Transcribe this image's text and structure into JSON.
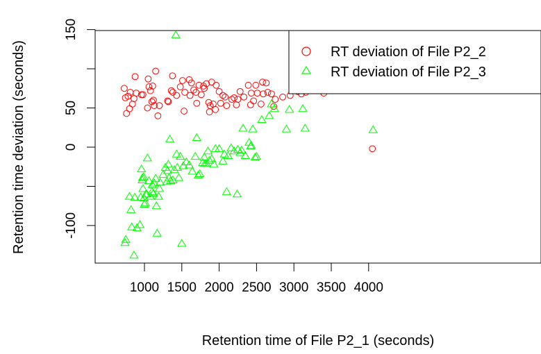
{
  "chart_data": {
    "type": "scatter",
    "xlabel": "Retention time of File P2_1 (seconds)",
    "ylabel": "Retention time deviation (seconds)",
    "xlim": [
      650,
      4100
    ],
    "ylim": [
      -145,
      150
    ],
    "x_ticks": [
      1000,
      1500,
      2000,
      2500,
      3000,
      3500,
      4000
    ],
    "y_ticks": [
      150,
      50,
      0,
      -100
    ],
    "y_ticks_unlabeled": [
      100,
      -50
    ],
    "grid": false,
    "legend_position": "top-right",
    "series": [
      {
        "name": "RT deviation of File P2_2",
        "marker": "circle",
        "color": "#ff0000",
        "points": [
          [
            730,
            75
          ],
          [
            745,
            63
          ],
          [
            760,
            43
          ],
          [
            780,
            65
          ],
          [
            800,
            49
          ],
          [
            810,
            70
          ],
          [
            840,
            55
          ],
          [
            860,
            62
          ],
          [
            875,
            90
          ],
          [
            890,
            69
          ],
          [
            960,
            67
          ],
          [
            980,
            67
          ],
          [
            1040,
            50
          ],
          [
            1050,
            87
          ],
          [
            1060,
            77
          ],
          [
            1080,
            72
          ],
          [
            1100,
            58
          ],
          [
            1110,
            78
          ],
          [
            1120,
            60
          ],
          [
            1130,
            53
          ],
          [
            1150,
            97
          ],
          [
            1180,
            40
          ],
          [
            1200,
            53
          ],
          [
            1310,
            59
          ],
          [
            1320,
            58
          ],
          [
            1360,
            72
          ],
          [
            1375,
            91
          ],
          [
            1380,
            70
          ],
          [
            1430,
            66
          ],
          [
            1480,
            77
          ],
          [
            1510,
            85
          ],
          [
            1530,
            46
          ],
          [
            1540,
            70
          ],
          [
            1600,
            86
          ],
          [
            1610,
            66
          ],
          [
            1630,
            82
          ],
          [
            1660,
            73
          ],
          [
            1690,
            70
          ],
          [
            1700,
            56
          ],
          [
            1730,
            79
          ],
          [
            1760,
            67
          ],
          [
            1790,
            78
          ],
          [
            1800,
            75
          ],
          [
            1830,
            81
          ],
          [
            1860,
            57
          ],
          [
            1870,
            45
          ],
          [
            1880,
            53
          ],
          [
            1900,
            83
          ],
          [
            1920,
            55
          ],
          [
            1950,
            48
          ],
          [
            1960,
            79
          ],
          [
            2000,
            71
          ],
          [
            2020,
            56
          ],
          [
            2050,
            66
          ],
          [
            2080,
            64
          ],
          [
            2100,
            53
          ],
          [
            2170,
            61
          ],
          [
            2200,
            63
          ],
          [
            2230,
            54
          ],
          [
            2250,
            61
          ],
          [
            2280,
            71
          ],
          [
            2330,
            64
          ],
          [
            2390,
            79
          ],
          [
            2420,
            54
          ],
          [
            2430,
            69
          ],
          [
            2460,
            59
          ],
          [
            2490,
            79
          ],
          [
            2510,
            69
          ],
          [
            2560,
            55
          ],
          [
            2580,
            83
          ],
          [
            2590,
            68
          ],
          [
            2630,
            82
          ],
          [
            2650,
            70
          ],
          [
            2700,
            68
          ],
          [
            2730,
            52
          ],
          [
            2750,
            61
          ],
          [
            2850,
            64
          ],
          [
            2950,
            66
          ],
          [
            3050,
            71
          ],
          [
            3100,
            68
          ],
          [
            3160,
            70
          ],
          [
            3260,
            81
          ],
          [
            3300,
            75
          ],
          [
            3400,
            69
          ],
          [
            4050,
            -2
          ]
        ]
      },
      {
        "name": "RT deviation of File P2_3",
        "marker": "triangle",
        "color": "#00ff00",
        "points": [
          [
            740,
            -122
          ],
          [
            750,
            -118
          ],
          [
            800,
            -63
          ],
          [
            820,
            -80
          ],
          [
            830,
            -102
          ],
          [
            860,
            -138
          ],
          [
            870,
            -64
          ],
          [
            900,
            -103
          ],
          [
            940,
            -99
          ],
          [
            950,
            -64
          ],
          [
            960,
            -28
          ],
          [
            970,
            -42
          ],
          [
            975,
            -39
          ],
          [
            980,
            -53
          ],
          [
            990,
            -38
          ],
          [
            995,
            -65
          ],
          [
            1000,
            -73
          ],
          [
            1010,
            -71
          ],
          [
            1020,
            -60
          ],
          [
            1030,
            -60
          ],
          [
            1040,
            -14
          ],
          [
            1060,
            -43
          ],
          [
            1080,
            -63
          ],
          [
            1100,
            -57
          ],
          [
            1105,
            -48
          ],
          [
            1120,
            -59
          ],
          [
            1130,
            -46
          ],
          [
            1150,
            -40
          ],
          [
            1160,
            -75
          ],
          [
            1170,
            -110
          ],
          [
            1190,
            -63
          ],
          [
            1200,
            -53
          ],
          [
            1210,
            -45
          ],
          [
            1250,
            -35
          ],
          [
            1280,
            -26
          ],
          [
            1300,
            -44
          ],
          [
            1310,
            -30
          ],
          [
            1320,
            -22
          ],
          [
            1330,
            -39
          ],
          [
            1340,
            10
          ],
          [
            1350,
            -43
          ],
          [
            1380,
            -42
          ],
          [
            1400,
            -29
          ],
          [
            1420,
            143
          ],
          [
            1430,
            -9
          ],
          [
            1440,
            -26
          ],
          [
            1460,
            -39
          ],
          [
            1480,
            -12
          ],
          [
            1500,
            -123
          ],
          [
            1520,
            -24
          ],
          [
            1560,
            -19
          ],
          [
            1600,
            -23
          ],
          [
            1640,
            -31
          ],
          [
            1680,
            -12
          ],
          [
            1700,
            12
          ],
          [
            1720,
            -36
          ],
          [
            1740,
            -34
          ],
          [
            1780,
            -20
          ],
          [
            1800,
            -13
          ],
          [
            1810,
            -21
          ],
          [
            1830,
            -21
          ],
          [
            1850,
            -5
          ],
          [
            1870,
            -17
          ],
          [
            1900,
            -15
          ],
          [
            1930,
            -22
          ],
          [
            1950,
            -2
          ],
          [
            2000,
            -2
          ],
          [
            2050,
            -18
          ],
          [
            2070,
            -9
          ],
          [
            2100,
            -57
          ],
          [
            2120,
            -11
          ],
          [
            2160,
            -1
          ],
          [
            2200,
            -5
          ],
          [
            2240,
            -60
          ],
          [
            2250,
            -3
          ],
          [
            2280,
            -7
          ],
          [
            2300,
            -4
          ],
          [
            2320,
            24
          ],
          [
            2350,
            -11
          ],
          [
            2400,
            6
          ],
          [
            2420,
            1
          ],
          [
            2430,
            2
          ],
          [
            2450,
            23
          ],
          [
            2480,
            -13
          ],
          [
            2500,
            -12
          ],
          [
            2570,
            35
          ],
          [
            2670,
            40
          ],
          [
            2700,
            55
          ],
          [
            2740,
            49
          ],
          [
            2900,
            23
          ],
          [
            2940,
            48
          ],
          [
            3120,
            49
          ],
          [
            3150,
            24
          ],
          [
            4060,
            22
          ]
        ]
      }
    ]
  }
}
